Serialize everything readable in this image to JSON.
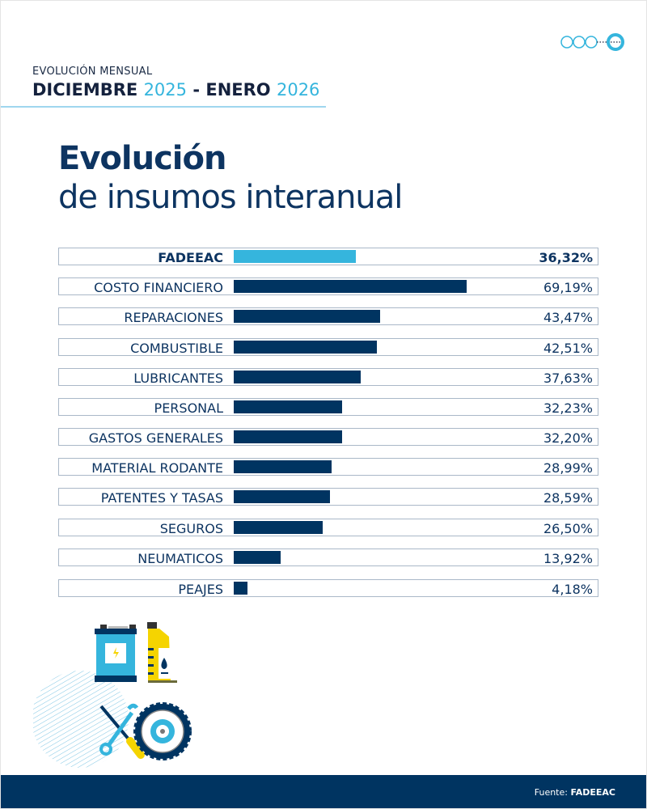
{
  "header": {
    "kicker": "EVOLUCIÓN MENSUAL",
    "period_month1": "DICIEMBRE",
    "period_year1": "2025",
    "period_sep": " - ",
    "period_month2": "ENERO",
    "period_year2": "2026"
  },
  "title": {
    "line1": "Evolución",
    "line2": "de insumos interanual"
  },
  "colors": {
    "navy": "#003461",
    "highlight": "#35b5dd"
  },
  "chart_data": {
    "type": "bar",
    "orientation": "horizontal",
    "categories": [
      "FADEEAC",
      "COSTO FINANCIERO",
      "REPARACIONES",
      "COMBUSTIBLE",
      "LUBRICANTES",
      "PERSONAL",
      "GASTOS GENERALES",
      "MATERIAL RODANTE",
      "PATENTES Y TASAS",
      "SEGUROS",
      "NEUMATICOS",
      "PEAJES"
    ],
    "values": [
      36.32,
      69.19,
      43.47,
      42.51,
      37.63,
      32.23,
      32.2,
      28.99,
      28.59,
      26.5,
      13.92,
      4.18
    ],
    "labels": [
      "36,32%",
      "69,19%",
      "43,47%",
      "42,51%",
      "37,63%",
      "32,23%",
      "32,20%",
      "28,99%",
      "28,59%",
      "26,50%",
      "13,92%",
      "4,18%"
    ],
    "highlight": "FADEEAC",
    "grid": false
  },
  "icons": [
    "battery-icon",
    "oil-can-icon",
    "wrench-screwdriver-icon",
    "tire-icon",
    "logo-circles-icon"
  ],
  "footer": {
    "source_prefix": "Fuente: ",
    "source_name": "FADEEAC"
  }
}
